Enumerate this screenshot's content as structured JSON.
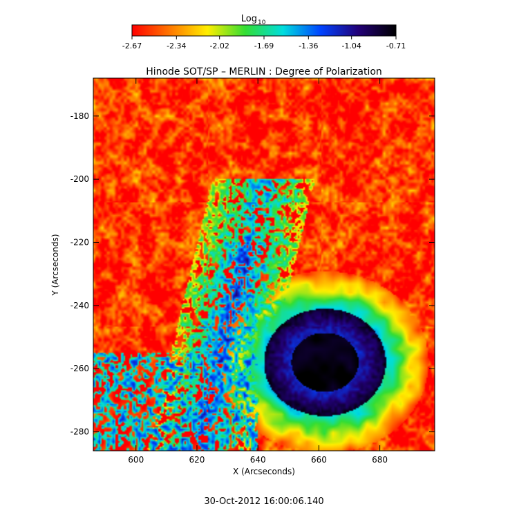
{
  "chart_data": {
    "type": "heatmap",
    "title": "Hinode SOT/SP – MERLIN : Degree of Polarization",
    "xlabel": "X (Arcseconds)",
    "ylabel": "Y (Arcseconds)",
    "xlim": [
      586,
      698
    ],
    "ylim": [
      -286,
      -168
    ],
    "x_ticks": [
      "600",
      "620",
      "640",
      "660",
      "680"
    ],
    "y_ticks": [
      "-180",
      "-200",
      "-220",
      "-240",
      "-260",
      "-280"
    ],
    "colorbar": {
      "label_base": "Log",
      "label_sub": "10",
      "range": [
        -2.67,
        -0.71
      ],
      "ticks": [
        "-2.67",
        "-2.34",
        "-2.02",
        "-1.69",
        "-1.36",
        "-1.04",
        "-0.71"
      ],
      "colors": [
        "#ff0000",
        "#ff7700",
        "#ffee00",
        "#33dd33",
        "#00dddd",
        "#0044ff",
        "#220077",
        "#000000"
      ]
    },
    "features": {
      "background_value": -2.55,
      "sunspot": {
        "x": 662,
        "y": -258,
        "umbra_value": -0.75,
        "penumbra_value": -1.15
      },
      "plage_band": {
        "x_center": 632,
        "y_range": [
          -286,
          -200
        ],
        "value": -1.4
      }
    },
    "timestamp": "30-Oct-2012 16:00:06.140"
  }
}
